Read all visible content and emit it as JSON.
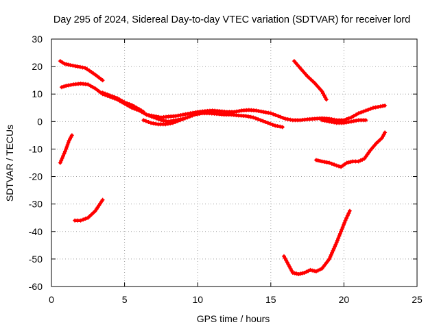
{
  "chart_data": {
    "type": "scatter",
    "title": "Day 295 of 2024, Sidereal Day-to-day VTEC variation (SDTVAR) for receiver lord",
    "xlabel": "GPS time / hours",
    "ylabel": "SDTVAR / TECUs",
    "xlim": [
      0,
      25
    ],
    "ylim": [
      -60,
      30
    ],
    "xticks": [
      0,
      5,
      10,
      15,
      20,
      25
    ],
    "yticks": [
      -60,
      -50,
      -40,
      -30,
      -20,
      -10,
      0,
      10,
      20,
      30
    ],
    "grid": true,
    "marker": "plus",
    "color": "#ff0000",
    "series": [
      {
        "name": "arc-1",
        "x": [
          0.6,
          0.9,
          1.3,
          1.8,
          2.3,
          2.6,
          3.0,
          3.5
        ],
        "y": [
          22,
          21,
          20.5,
          20,
          19.5,
          18.5,
          17,
          15
        ]
      },
      {
        "name": "arc-2",
        "x": [
          0.7,
          1.0,
          1.5,
          2.0,
          2.5,
          3.0,
          3.5,
          4.0,
          4.5,
          5.0,
          5.5,
          6.0,
          6.5,
          7.0,
          7.5,
          8.0,
          8.5,
          9.0
        ],
        "y": [
          12.5,
          13,
          13.5,
          13.8,
          13.5,
          12,
          10,
          9,
          8,
          6.5,
          5,
          4,
          2.5,
          1.5,
          0.5,
          0,
          0.5,
          1
        ]
      },
      {
        "name": "arc-3",
        "x": [
          0.6,
          0.8,
          1.0,
          1.2,
          1.4
        ],
        "y": [
          -15,
          -12.5,
          -10,
          -7,
          -5
        ]
      },
      {
        "name": "arc-4",
        "x": [
          1.6,
          2.0,
          2.5,
          3.0,
          3.5
        ],
        "y": [
          -36,
          -36,
          -35,
          -32.5,
          -28.5
        ]
      },
      {
        "name": "arc-5",
        "x": [
          3.5,
          4.0,
          4.5,
          5.0,
          5.5,
          6.0,
          6.3
        ],
        "y": [
          10.5,
          9.5,
          8.5,
          7,
          6,
          4.5,
          3.5
        ]
      },
      {
        "name": "arc-6",
        "x": [
          6.3,
          6.8,
          7.3,
          7.8,
          8.3,
          8.8,
          9.3,
          9.8,
          10.3,
          10.8,
          11.3,
          11.8,
          12.3,
          12.8,
          13.3,
          13.8,
          14.3,
          14.8,
          15.3,
          15.8
        ],
        "y": [
          0.5,
          -0.5,
          -1,
          -1,
          -0.5,
          0.5,
          1.5,
          2.5,
          3,
          3,
          2.8,
          2.5,
          2.5,
          2.2,
          2,
          1.5,
          0.5,
          -0.5,
          -1.5,
          -2
        ]
      },
      {
        "name": "arc-7",
        "x": [
          6.5,
          7.0,
          7.5,
          8.0,
          8.5,
          9.0,
          9.5,
          10.0,
          10.5,
          11.0,
          11.5,
          12.0,
          12.5,
          13.0,
          13.5,
          14.0,
          14.5,
          15.0,
          15.5,
          16.0,
          16.5,
          17.0,
          17.5,
          18.0,
          18.5,
          19.0,
          19.5,
          20.0,
          20.5,
          21.0,
          21.5,
          22.0,
          22.5,
          22.8
        ],
        "y": [
          2.5,
          2,
          1.5,
          1.8,
          2,
          2.5,
          3,
          3.5,
          3.8,
          4,
          3.8,
          3.5,
          3.5,
          4,
          4.2,
          4,
          3.5,
          3,
          2,
          1,
          0.5,
          0.5,
          0.8,
          1,
          1.2,
          1,
          0.5,
          0.5,
          1.5,
          3,
          4,
          5,
          5.5,
          5.8
        ]
      },
      {
        "name": "arc-8",
        "x": [
          18.5,
          19.0,
          19.5,
          20.0,
          20.5,
          21.0,
          21.5
        ],
        "y": [
          0.5,
          0,
          -0.5,
          -0.5,
          0,
          0.5,
          0.5
        ]
      },
      {
        "name": "arc-9",
        "x": [
          16.6,
          17.0,
          17.5,
          18.0,
          18.5,
          18.8
        ],
        "y": [
          22,
          19.5,
          16.5,
          14,
          11,
          8
        ]
      },
      {
        "name": "arc-10",
        "x": [
          18.1,
          18.5,
          19.0,
          19.5,
          19.8,
          20.2,
          20.6,
          21.0,
          21.4,
          21.8,
          22.2,
          22.6,
          22.8
        ],
        "y": [
          -14,
          -14.5,
          -15,
          -16,
          -16.5,
          -15,
          -14.5,
          -14.5,
          -13.5,
          -10.5,
          -8,
          -6,
          -4
        ]
      },
      {
        "name": "arc-11",
        "x": [
          15.9,
          16.2,
          16.5,
          16.9,
          17.3,
          17.7,
          18.1,
          18.5,
          19.0,
          19.5,
          19.8,
          20.1,
          20.4
        ],
        "y": [
          -49,
          -52,
          -55,
          -55.5,
          -55,
          -54,
          -54.5,
          -53.5,
          -50,
          -44,
          -40,
          -36,
          -32.5
        ]
      }
    ]
  }
}
